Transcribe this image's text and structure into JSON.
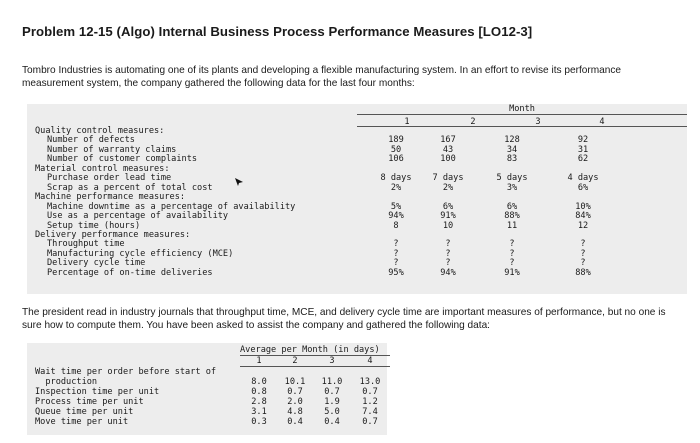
{
  "title": "Problem 12-15 (Algo) Internal Business Process Performance Measures [LO12-3]",
  "intro": "Tombro Industries is automating one of its plants and developing a flexible manufacturing system. In an effort to revise its performance measurement system, the company gathered the following data for the last four months:",
  "table1": {
    "header": "Month",
    "columns": [
      "1",
      "2",
      "3",
      "4"
    ],
    "rows": [
      {
        "label": "Quality control measures:",
        "indent": 0,
        "values": [
          "",
          "",
          "",
          ""
        ]
      },
      {
        "label": "Number of defects",
        "indent": 1,
        "values": [
          "189",
          "167",
          "128",
          "92"
        ]
      },
      {
        "label": "Number of warranty claims",
        "indent": 1,
        "values": [
          "50",
          "43",
          "34",
          "31"
        ]
      },
      {
        "label": "Number of customer complaints",
        "indent": 1,
        "values": [
          "106",
          "100",
          "83",
          "62"
        ]
      },
      {
        "label": "Material control measures:",
        "indent": 0,
        "values": [
          "",
          "",
          "",
          ""
        ]
      },
      {
        "label": "Purchase order lead time",
        "indent": 1,
        "values": [
          "8 days",
          "7 days",
          "5 days",
          "4 days"
        ]
      },
      {
        "label": "Scrap as a percent of total cost",
        "indent": 1,
        "values": [
          "2%",
          "2%",
          "3%",
          "6%"
        ]
      },
      {
        "label": "Machine performance measures:",
        "indent": 0,
        "values": [
          "",
          "",
          "",
          ""
        ]
      },
      {
        "label": "Machine downtime as a percentage of availability",
        "indent": 1,
        "values": [
          "5%",
          "6%",
          "6%",
          "10%"
        ]
      },
      {
        "label": "Use as a percentage of availability",
        "indent": 1,
        "values": [
          "94%",
          "91%",
          "88%",
          "84%"
        ]
      },
      {
        "label": "Setup time (hours)",
        "indent": 1,
        "values": [
          "8",
          "10",
          "11",
          "12"
        ]
      },
      {
        "label": "Delivery performance measures:",
        "indent": 0,
        "values": [
          "",
          "",
          "",
          ""
        ]
      },
      {
        "label": "Throughput time",
        "indent": 1,
        "values": [
          "?",
          "?",
          "?",
          "?"
        ]
      },
      {
        "label": "Manufacturing cycle efficiency (MCE)",
        "indent": 1,
        "values": [
          "?",
          "?",
          "?",
          "?"
        ]
      },
      {
        "label": "Delivery cycle time",
        "indent": 1,
        "values": [
          "?",
          "?",
          "?",
          "?"
        ]
      },
      {
        "label": "Percentage of on-time deliveries",
        "indent": 1,
        "values": [
          "95%",
          "94%",
          "91%",
          "88%"
        ]
      }
    ]
  },
  "middle": "The president read in industry journals that throughput time, MCE, and delivery cycle time are important measures of performance, but no one is sure how to compute them. You have been asked to assist the company and gathered the following data:",
  "table2": {
    "header": "Average per Month (in days)",
    "columns": [
      "1",
      "2",
      "3",
      "4"
    ],
    "rows": [
      {
        "label": "Wait time per order before start of",
        "values": [
          "",
          "",
          "",
          ""
        ]
      },
      {
        "label": "  production",
        "values": [
          "8.0",
          "10.1",
          "11.0",
          "13.0"
        ]
      },
      {
        "label": "Inspection time per unit",
        "values": [
          "0.8",
          "0.7",
          "0.7",
          "0.7"
        ]
      },
      {
        "label": "Process time per unit",
        "values": [
          "2.8",
          "2.0",
          "1.9",
          "1.2"
        ]
      },
      {
        "label": "Queue time per unit",
        "values": [
          "3.1",
          "4.8",
          "5.0",
          "7.4"
        ]
      },
      {
        "label": "Move time per unit",
        "values": [
          "0.3",
          "0.4",
          "0.4",
          "0.7"
        ]
      }
    ]
  }
}
